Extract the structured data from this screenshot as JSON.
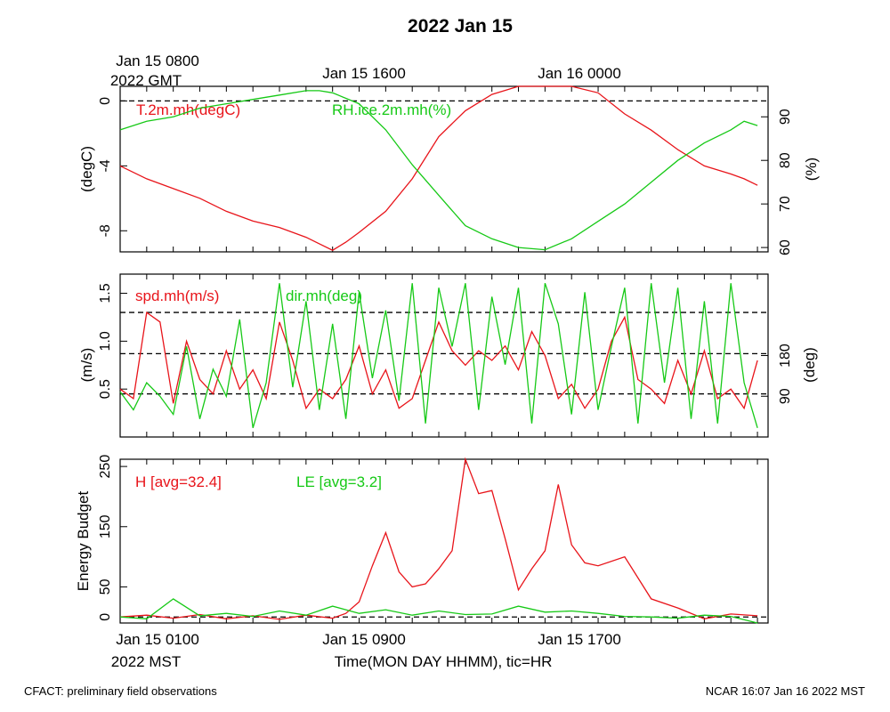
{
  "title": "2022 Jan 15",
  "top_axis": {
    "labels": [
      "Jan 15 0800",
      "Jan 15 1600",
      "Jan 16 0000"
    ],
    "sub_label": "2022 GMT"
  },
  "bottom_axis": {
    "labels": [
      "Jan 15 0100",
      "Jan 15 0900",
      "Jan 15 1700"
    ],
    "sub_label": "2022 MST",
    "title": "Time(MON DAY HHMM), tic=HR"
  },
  "footer": {
    "left": "CFACT: preliminary field observations",
    "right": "NCAR 16:07 Jan 16 2022 MST"
  },
  "chart_data": [
    {
      "type": "line",
      "panel": "temperature-humidity",
      "left_axis": {
        "label": "(degC)",
        "range": [
          -9.3,
          0.9
        ],
        "ticks": [
          "0",
          "-4",
          "-8"
        ],
        "tick_values": [
          0,
          -4,
          -8
        ]
      },
      "right_axis": {
        "label": "(%)",
        "range": [
          59,
          97
        ],
        "ticks": [
          "90",
          "80",
          "70",
          "60"
        ],
        "tick_values": [
          90,
          80,
          70,
          60
        ]
      },
      "reference_lines_left": [
        0
      ],
      "x_range_hours": [
        0,
        24.4
      ],
      "series": [
        {
          "name": "T.2m.mh(degC)",
          "axis": "left",
          "color": "#e8141a",
          "x": [
            0,
            1,
            2,
            3,
            4,
            5,
            6,
            7,
            7.5,
            8,
            8.5,
            9,
            10,
            11,
            12,
            13,
            14,
            15,
            16,
            17,
            18,
            19,
            20,
            21,
            22,
            23,
            23.5,
            24
          ],
          "values": [
            -4,
            -4.8,
            -5.4,
            -6,
            -6.8,
            -7.4,
            -7.8,
            -8.4,
            -8.8,
            -9.2,
            -8.7,
            -8.1,
            -6.8,
            -4.8,
            -2.2,
            -0.6,
            0.4,
            1.2,
            1.5,
            1.3,
            0.5,
            -0.8,
            -1.8,
            -3,
            -4,
            -4.5,
            -4.8,
            -5.2
          ]
        },
        {
          "name": "RH.ice.2m.mh(%)",
          "axis": "right",
          "color": "#16c916",
          "x": [
            0,
            1,
            2,
            3,
            4,
            5,
            6,
            7,
            7.5,
            8,
            9,
            10,
            11,
            12,
            13,
            14,
            15,
            16,
            17,
            18,
            19,
            20,
            21,
            22,
            23,
            23.5,
            24
          ],
          "values": [
            87,
            89,
            90,
            92,
            93,
            94,
            95,
            96,
            96,
            95.5,
            93,
            87,
            79,
            72,
            65,
            62,
            60,
            59.5,
            62,
            66,
            70,
            75,
            80,
            84,
            87,
            89,
            88
          ]
        }
      ]
    },
    {
      "type": "line",
      "panel": "wind",
      "left_axis": {
        "label": "(m/s)",
        "range": [
          0,
          1.7
        ],
        "ticks": [
          "1.5",
          "1.0",
          "0.5"
        ],
        "tick_values": [
          1.5,
          1.0,
          0.5
        ]
      },
      "right_axis": {
        "label": "(deg)",
        "range": [
          0,
          360
        ],
        "ticks": [
          "180",
          "90"
        ],
        "tick_values": [
          180,
          90
        ]
      },
      "reference_lines_left": [
        0.45,
        0.87,
        1.3
      ],
      "x_range_hours": [
        0,
        24.4
      ],
      "series": [
        {
          "name": "spd.mh(m/s)",
          "axis": "left",
          "color": "#e8141a",
          "x": [
            0,
            0.5,
            1,
            1.5,
            2,
            2.5,
            3,
            3.5,
            4,
            4.5,
            5,
            5.5,
            6,
            6.5,
            7,
            7.5,
            8,
            8.5,
            9,
            9.5,
            10,
            10.5,
            11,
            11.5,
            12,
            12.5,
            13,
            13.5,
            14,
            14.5,
            15,
            15.5,
            16,
            16.5,
            17,
            17.5,
            18,
            18.5,
            19,
            19.5,
            20,
            20.5,
            21,
            21.5,
            22,
            22.5,
            23,
            23.5,
            24
          ],
          "values": [
            0.5,
            0.4,
            1.3,
            1.2,
            0.35,
            1.0,
            0.6,
            0.45,
            0.9,
            0.5,
            0.7,
            0.4,
            1.2,
            0.8,
            0.3,
            0.5,
            0.4,
            0.6,
            0.95,
            0.45,
            0.7,
            0.3,
            0.4,
            0.8,
            1.2,
            0.9,
            0.75,
            0.9,
            0.8,
            0.95,
            0.7,
            1.1,
            0.85,
            0.4,
            0.55,
            0.3,
            0.5,
            1.0,
            1.25,
            0.6,
            0.5,
            0.35,
            0.8,
            0.45,
            0.9,
            0.4,
            0.5,
            0.3,
            0.8
          ]
        },
        {
          "name": "dir.mh(deg)",
          "axis": "right",
          "color": "#16c916",
          "x": [
            0,
            0.5,
            1,
            1.5,
            2,
            2.5,
            3,
            3.5,
            4,
            4.5,
            5,
            5.5,
            6,
            6.5,
            7,
            7.5,
            8,
            8.5,
            9,
            9.5,
            10,
            10.5,
            11,
            11.5,
            12,
            12.5,
            13,
            13.5,
            14,
            14.5,
            15,
            15.5,
            16,
            16.5,
            17,
            17.5,
            18,
            18.5,
            19,
            19.5,
            20,
            20.5,
            21,
            21.5,
            22,
            22.5,
            23,
            23.5,
            24
          ],
          "values": [
            100,
            60,
            120,
            90,
            50,
            200,
            40,
            150,
            90,
            260,
            20,
            120,
            340,
            110,
            300,
            60,
            250,
            40,
            320,
            130,
            280,
            80,
            340,
            30,
            330,
            200,
            340,
            60,
            310,
            160,
            330,
            30,
            340,
            250,
            50,
            320,
            60,
            200,
            330,
            30,
            340,
            120,
            330,
            40,
            300,
            30,
            340,
            120,
            20
          ]
        }
      ]
    },
    {
      "type": "line",
      "panel": "energy-budget",
      "left_axis": {
        "label": "Energy Budget",
        "range": [
          -10,
          262
        ],
        "ticks": [
          "250",
          "150",
          "50",
          "0"
        ],
        "tick_values": [
          250,
          150,
          50,
          0
        ]
      },
      "reference_lines_left": [
        0
      ],
      "x_range_hours": [
        0,
        24.4
      ],
      "series": [
        {
          "name": "H [avg=32.4]",
          "axis": "left",
          "color": "#e8141a",
          "x": [
            0,
            1,
            2,
            3,
            4,
            5,
            6,
            7,
            8,
            8.5,
            9,
            9.5,
            10,
            10.5,
            11,
            11.5,
            12,
            12.5,
            13,
            13.5,
            14,
            14.5,
            15,
            15.5,
            16,
            16.5,
            17,
            17.5,
            18,
            19,
            20,
            21,
            22,
            23,
            24
          ],
          "values": [
            0,
            3,
            -2,
            4,
            -3,
            2,
            -4,
            3,
            -2,
            6,
            25,
            85,
            140,
            75,
            50,
            55,
            80,
            110,
            262,
            205,
            210,
            130,
            45,
            80,
            110,
            220,
            120,
            90,
            85,
            100,
            30,
            15,
            -3,
            5,
            2
          ]
        },
        {
          "name": "LE [avg=3.2]",
          "axis": "left",
          "color": "#16c916",
          "x": [
            0,
            1,
            2,
            3,
            4,
            5,
            6,
            7,
            8,
            9,
            10,
            11,
            12,
            13,
            14,
            15,
            16,
            17,
            18,
            19,
            20,
            21,
            22,
            23,
            24
          ],
          "values": [
            0,
            -3,
            30,
            2,
            6,
            1,
            10,
            3,
            18,
            6,
            12,
            3,
            10,
            4,
            5,
            18,
            8,
            10,
            6,
            1,
            0,
            -2,
            3,
            1,
            -10
          ]
        }
      ]
    }
  ]
}
